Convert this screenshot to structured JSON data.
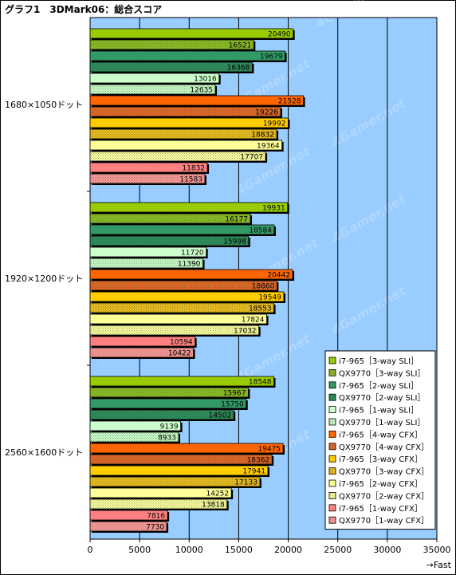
{
  "chart_data": {
    "type": "bar",
    "orientation": "horizontal",
    "title": "グラフ1　3DMark06：総合スコア",
    "xlabel": "→Fast",
    "xlim": [
      0,
      35000
    ],
    "xticks": [
      0,
      5000,
      10000,
      15000,
      20000,
      25000,
      30000,
      35000
    ],
    "grid": true,
    "legend_position": "bottom-right",
    "watermark": "4Gamer.net",
    "categories": [
      "1680×1050ドット",
      "1920×1200ドット",
      "2560×1600ドット"
    ],
    "series": [
      {
        "name": "i7-965［3-way SLI］",
        "color": "#99cc00",
        "pattern": "solid",
        "values": [
          20490,
          19931,
          18548
        ]
      },
      {
        "name": "QX9770［3-way SLI］",
        "color": "#8fbf26",
        "pattern": "dots",
        "values": [
          16521,
          16177,
          15967
        ]
      },
      {
        "name": "i7-965［2-way SLI］",
        "color": "#339966",
        "pattern": "solid",
        "values": [
          19679,
          18584,
          15750
        ]
      },
      {
        "name": "QX9770［2-way SLI］",
        "color": "#2f8f5f",
        "pattern": "dots",
        "values": [
          16368,
          15998,
          14502
        ]
      },
      {
        "name": "i7-965［1-way SLI］",
        "color": "#ccffcc",
        "pattern": "solid",
        "values": [
          13016,
          11720,
          9139
        ]
      },
      {
        "name": "QX9770［1-way SLI］",
        "color": "#ccffcc",
        "pattern": "dots",
        "values": [
          12635,
          11390,
          8933
        ]
      },
      {
        "name": "i7-965［4-way CFX］",
        "color": "#ff6600",
        "pattern": "solid",
        "values": [
          21528,
          20442,
          19475
        ]
      },
      {
        "name": "QX9770［4-way CFX］",
        "color": "#e86a2a",
        "pattern": "dots",
        "values": [
          19226,
          18860,
          18362
        ]
      },
      {
        "name": "i7-965［3-way CFX］",
        "color": "#ffcc00",
        "pattern": "solid",
        "values": [
          19992,
          19549,
          17941
        ]
      },
      {
        "name": "QX9770［3-way CFX］",
        "color": "#f0c020",
        "pattern": "dots",
        "values": [
          18832,
          18553,
          17133
        ]
      },
      {
        "name": "i7-965［2-way CFX］",
        "color": "#ffff99",
        "pattern": "solid",
        "values": [
          19364,
          17824,
          14252
        ]
      },
      {
        "name": "QX9770［2-way CFX］",
        "color": "#ffffa0",
        "pattern": "dots",
        "values": [
          17707,
          17032,
          13818
        ]
      },
      {
        "name": "i7-965［1-way CFX］",
        "color": "#ff8080",
        "pattern": "solid",
        "values": [
          11832,
          10594,
          7816
        ]
      },
      {
        "name": "QX9770［1-way CFX］",
        "color": "#ff9a9a",
        "pattern": "dots",
        "values": [
          11583,
          10422,
          7730
        ]
      }
    ]
  },
  "colors": {
    "plot_background": "#99ccff",
    "gridline": "#000000",
    "bar_outline": "#000000"
  }
}
